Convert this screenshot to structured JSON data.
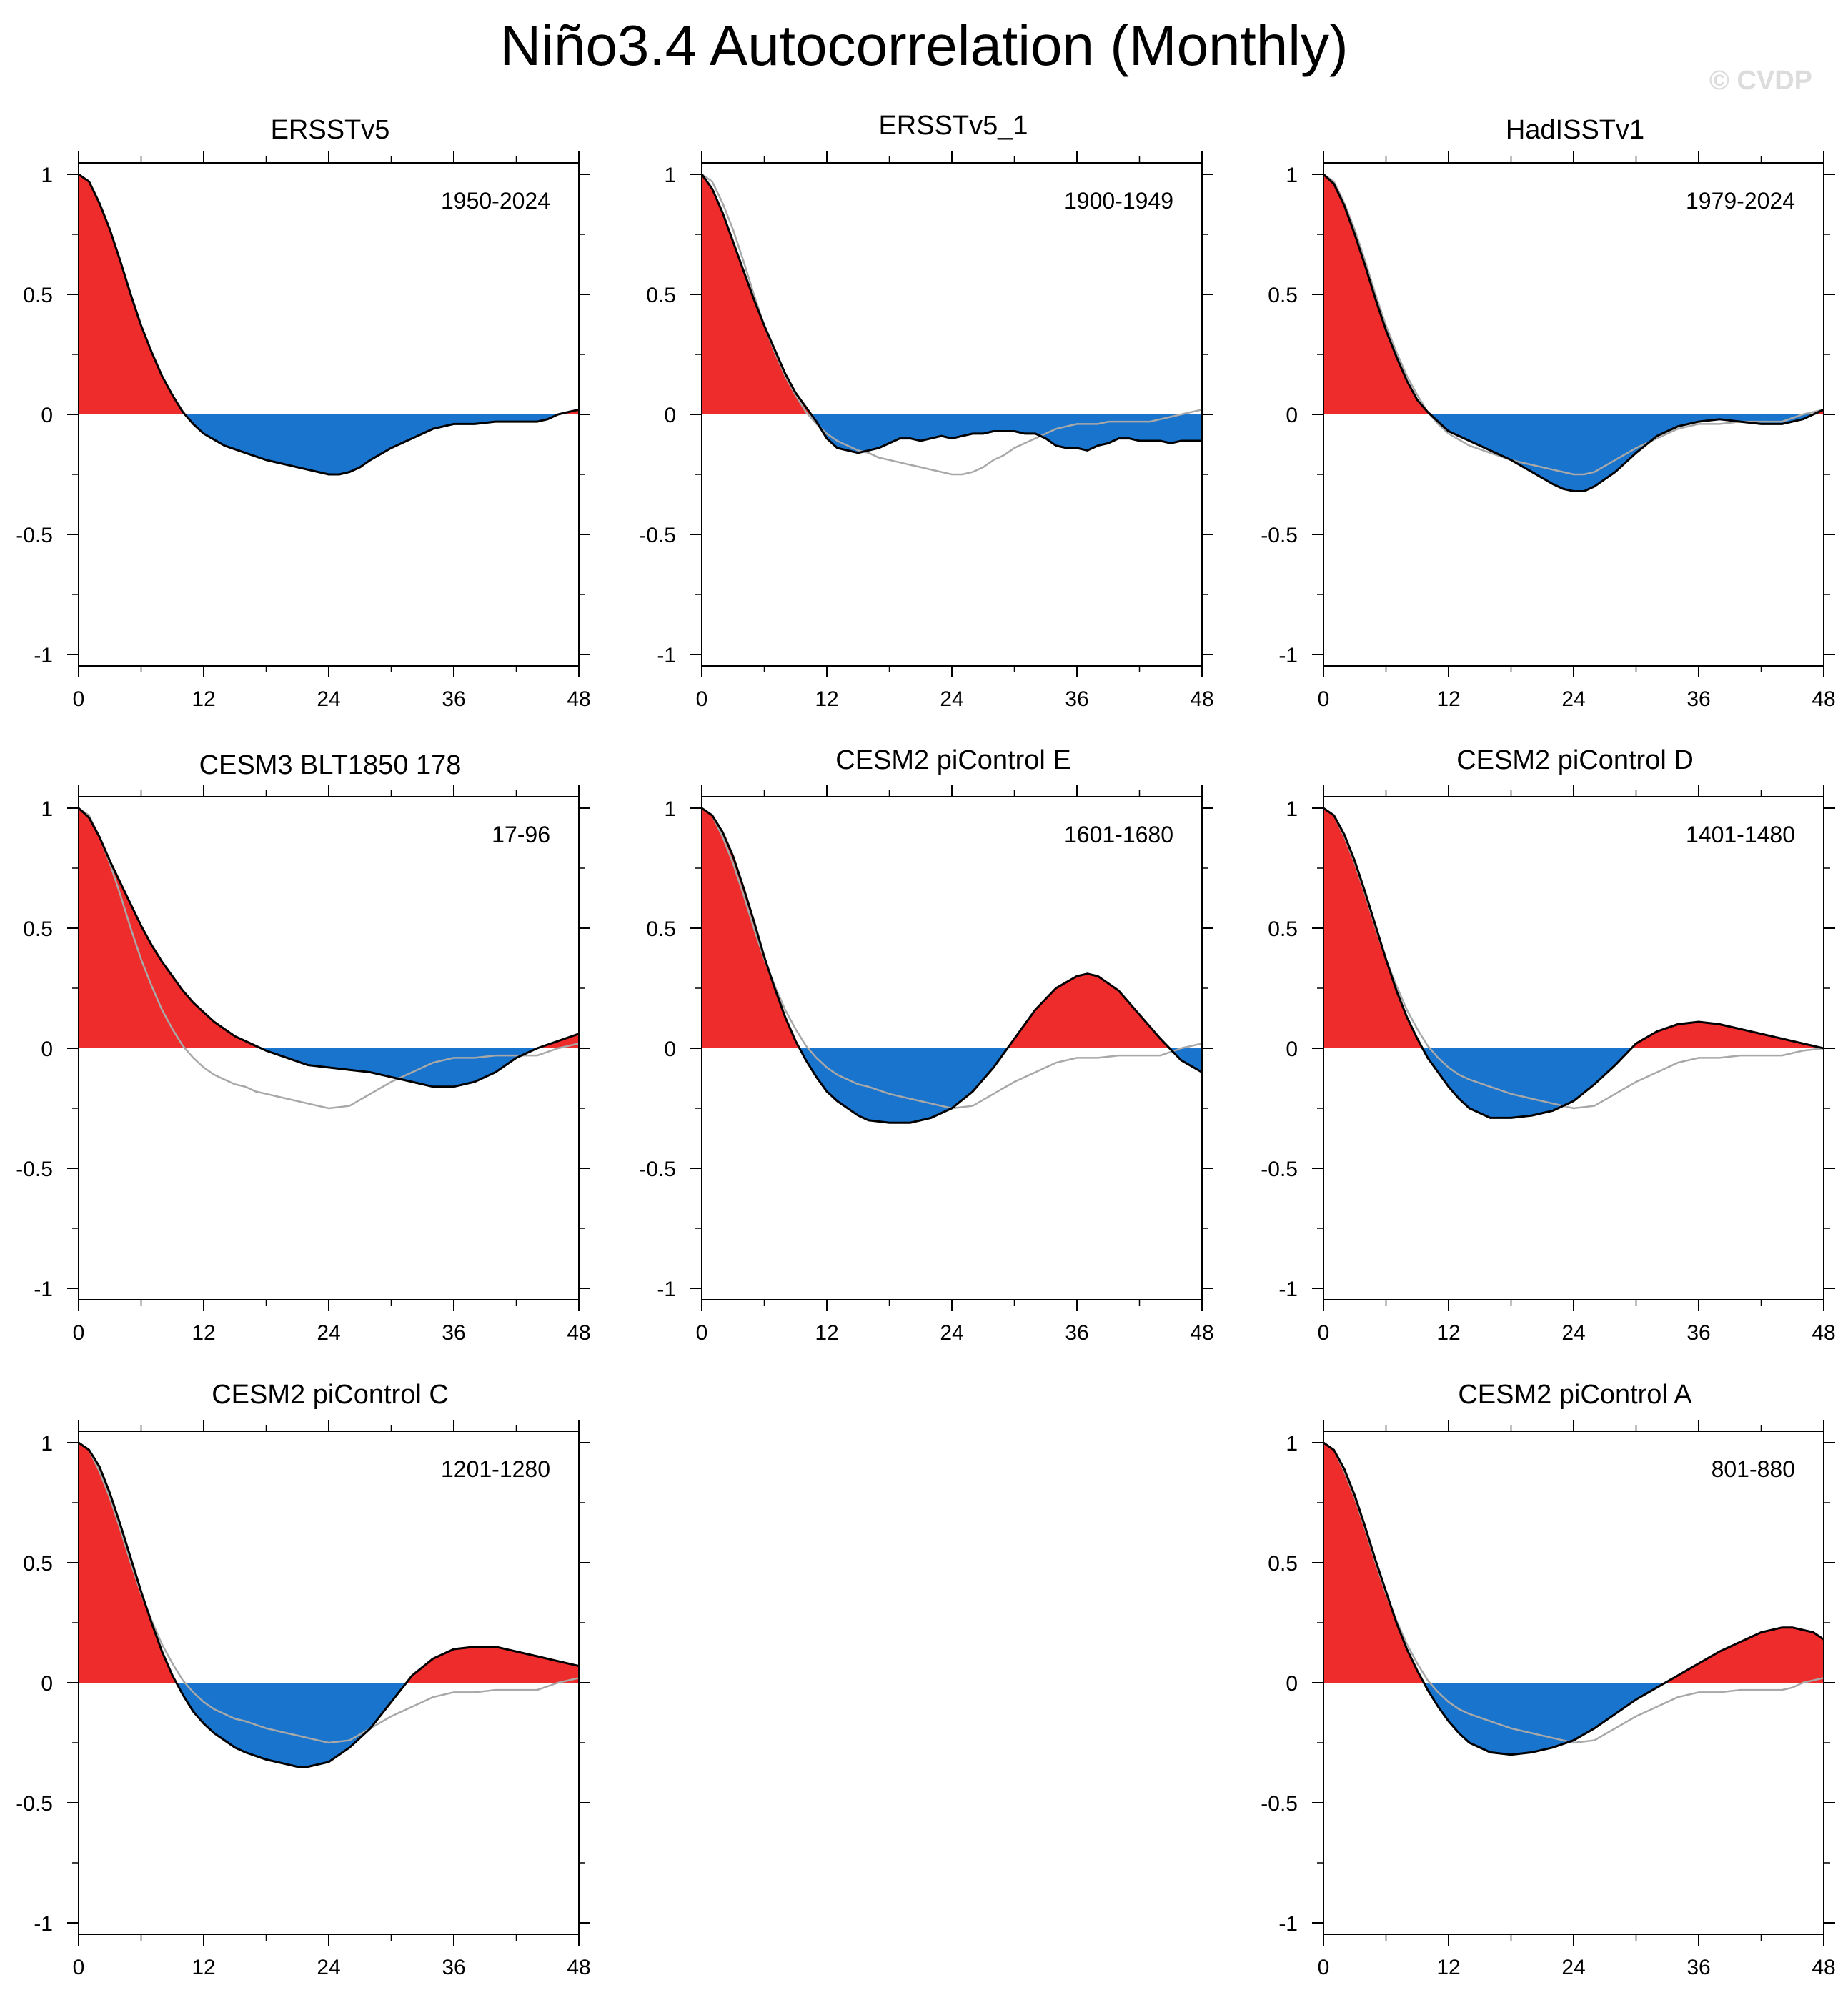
{
  "title": "Niño3.4 Autocorrelation (Monthly)",
  "watermark": "© CVDP",
  "colors": {
    "positive_fill": "#ee2c2c",
    "negative_fill": "#1874cd",
    "model_line": "#000000",
    "reference_line": "#a8a8a8"
  },
  "chart_data": [
    {
      "type": "area",
      "title": "ERSSTv5",
      "period": "1950-2024",
      "x": [
        0,
        1,
        2,
        3,
        4,
        5,
        6,
        7,
        8,
        9,
        10,
        11,
        12,
        14,
        16,
        18,
        20,
        22,
        24,
        25,
        26,
        27,
        28,
        30,
        32,
        34,
        36,
        38,
        40,
        42,
        43,
        44,
        45,
        46,
        47,
        48
      ],
      "series": [
        {
          "values": [
            1.0,
            0.97,
            0.88,
            0.77,
            0.64,
            0.5,
            0.37,
            0.26,
            0.16,
            0.08,
            0.01,
            -0.04,
            -0.08,
            -0.13,
            -0.16,
            -0.19,
            -0.21,
            -0.23,
            -0.25,
            -0.25,
            -0.24,
            -0.22,
            -0.19,
            -0.14,
            -0.1,
            -0.06,
            -0.04,
            -0.04,
            -0.03,
            -0.03,
            -0.03,
            -0.03,
            -0.02,
            0.0,
            0.01,
            0.02
          ]
        },
        {
          "values": [
            1.0,
            0.97,
            0.88,
            0.77,
            0.64,
            0.5,
            0.37,
            0.26,
            0.16,
            0.08,
            0.01,
            -0.04,
            -0.08,
            -0.13,
            -0.16,
            -0.19,
            -0.21,
            -0.23,
            -0.25,
            -0.25,
            -0.24,
            -0.22,
            -0.19,
            -0.14,
            -0.1,
            -0.06,
            -0.04,
            -0.04,
            -0.03,
            -0.03,
            -0.03,
            -0.03,
            -0.02,
            0.0,
            0.01,
            0.02
          ]
        }
      ],
      "xticks": [
        "0",
        "12",
        "24",
        "36",
        "48"
      ],
      "yticks": [
        "1",
        "0.5",
        "0",
        "-0.5",
        "-1"
      ],
      "xlim": [
        0,
        48
      ],
      "ylim": [
        -1,
        1
      ]
    },
    {
      "type": "area",
      "title": "ERSSTv5_1",
      "period": "1900-1949",
      "x": [
        0,
        1,
        2,
        3,
        4,
        5,
        6,
        7,
        8,
        9,
        10,
        11,
        12,
        13,
        14,
        15,
        16,
        17,
        18,
        19,
        20,
        21,
        22,
        23,
        24,
        25,
        26,
        27,
        28,
        29,
        30,
        31,
        32,
        33,
        34,
        35,
        36,
        37,
        38,
        39,
        40,
        41,
        42,
        43,
        44,
        45,
        46,
        47,
        48
      ],
      "series": [
        {
          "values": [
            1.0,
            0.94,
            0.84,
            0.72,
            0.6,
            0.48,
            0.37,
            0.27,
            0.17,
            0.09,
            0.03,
            -0.03,
            -0.1,
            -0.14,
            -0.15,
            -0.16,
            -0.15,
            -0.14,
            -0.12,
            -0.1,
            -0.1,
            -0.11,
            -0.1,
            -0.09,
            -0.1,
            -0.09,
            -0.08,
            -0.08,
            -0.07,
            -0.07,
            -0.07,
            -0.08,
            -0.08,
            -0.1,
            -0.13,
            -0.14,
            -0.14,
            -0.15,
            -0.13,
            -0.12,
            -0.1,
            -0.1,
            -0.11,
            -0.11,
            -0.11,
            -0.12,
            -0.11,
            -0.11,
            -0.11
          ]
        },
        {
          "values": [
            1.0,
            0.97,
            0.88,
            0.77,
            0.64,
            0.5,
            0.37,
            0.26,
            0.16,
            0.08,
            0.01,
            -0.04,
            -0.08,
            -0.11,
            -0.13,
            -0.15,
            -0.16,
            -0.18,
            -0.19,
            -0.2,
            -0.21,
            -0.22,
            -0.23,
            -0.24,
            -0.25,
            -0.25,
            -0.24,
            -0.22,
            -0.19,
            -0.17,
            -0.14,
            -0.12,
            -0.1,
            -0.08,
            -0.06,
            -0.05,
            -0.04,
            -0.04,
            -0.04,
            -0.03,
            -0.03,
            -0.03,
            -0.03,
            -0.03,
            -0.02,
            -0.01,
            0.0,
            0.01,
            0.02
          ]
        }
      ],
      "xticks": [
        "0",
        "12",
        "24",
        "36",
        "48"
      ],
      "yticks": [
        "1",
        "0.5",
        "0",
        "-0.5",
        "-1"
      ],
      "xlim": [
        0,
        48
      ],
      "ylim": [
        -1,
        1
      ]
    },
    {
      "type": "area",
      "title": "HadISSTv1",
      "period": "1979-2024",
      "x": [
        0,
        1,
        2,
        3,
        4,
        5,
        6,
        7,
        8,
        9,
        10,
        11,
        12,
        14,
        16,
        18,
        20,
        22,
        23,
        24,
        25,
        26,
        28,
        30,
        32,
        34,
        36,
        38,
        40,
        42,
        44,
        46,
        47,
        48
      ],
      "series": [
        {
          "values": [
            1.0,
            0.96,
            0.87,
            0.75,
            0.62,
            0.48,
            0.35,
            0.24,
            0.14,
            0.06,
            0.01,
            -0.03,
            -0.07,
            -0.11,
            -0.15,
            -0.19,
            -0.24,
            -0.29,
            -0.31,
            -0.32,
            -0.32,
            -0.3,
            -0.24,
            -0.16,
            -0.09,
            -0.05,
            -0.03,
            -0.02,
            -0.03,
            -0.04,
            -0.04,
            -0.02,
            0.0,
            0.02
          ]
        },
        {
          "values": [
            1.0,
            0.97,
            0.88,
            0.77,
            0.64,
            0.5,
            0.37,
            0.26,
            0.16,
            0.08,
            0.01,
            -0.04,
            -0.08,
            -0.13,
            -0.16,
            -0.19,
            -0.21,
            -0.23,
            -0.24,
            -0.25,
            -0.25,
            -0.24,
            -0.19,
            -0.14,
            -0.1,
            -0.06,
            -0.04,
            -0.04,
            -0.03,
            -0.03,
            -0.03,
            0.0,
            0.01,
            0.02
          ]
        }
      ],
      "xticks": [
        "0",
        "12",
        "24",
        "36",
        "48"
      ],
      "yticks": [
        "1",
        "0.5",
        "0",
        "-0.5",
        "-1"
      ],
      "xlim": [
        0,
        48
      ],
      "ylim": [
        -1,
        1
      ]
    },
    {
      "type": "area",
      "title": "CESM3 BLT1850 178",
      "period": "17-96",
      "x": [
        0,
        1,
        2,
        3,
        4,
        5,
        6,
        7,
        8,
        9,
        10,
        11,
        12,
        13,
        14,
        15,
        16,
        17,
        18,
        20,
        22,
        24,
        26,
        28,
        30,
        32,
        34,
        36,
        38,
        40,
        42,
        44,
        46,
        48
      ],
      "series": [
        {
          "values": [
            1.0,
            0.96,
            0.88,
            0.78,
            0.69,
            0.6,
            0.51,
            0.43,
            0.36,
            0.3,
            0.24,
            0.19,
            0.15,
            0.11,
            0.08,
            0.05,
            0.03,
            0.01,
            -0.01,
            -0.04,
            -0.07,
            -0.08,
            -0.09,
            -0.1,
            -0.12,
            -0.14,
            -0.16,
            -0.16,
            -0.14,
            -0.1,
            -0.04,
            0.0,
            0.03,
            0.06
          ]
        },
        {
          "values": [
            1.0,
            0.97,
            0.88,
            0.77,
            0.64,
            0.5,
            0.37,
            0.26,
            0.16,
            0.08,
            0.01,
            -0.04,
            -0.08,
            -0.11,
            -0.13,
            -0.15,
            -0.16,
            -0.18,
            -0.19,
            -0.21,
            -0.23,
            -0.25,
            -0.24,
            -0.19,
            -0.14,
            -0.1,
            -0.06,
            -0.04,
            -0.04,
            -0.03,
            -0.03,
            -0.03,
            0.0,
            0.02
          ]
        }
      ],
      "xticks": [
        "0",
        "12",
        "24",
        "36",
        "48"
      ],
      "yticks": [
        "1",
        "0.5",
        "0",
        "-0.5",
        "-1"
      ],
      "xlim": [
        0,
        48
      ],
      "ylim": [
        -1,
        1
      ]
    },
    {
      "type": "area",
      "title": "CESM2 piControl E",
      "period": "1601-1680",
      "x": [
        0,
        1,
        2,
        3,
        4,
        5,
        6,
        7,
        8,
        9,
        10,
        11,
        12,
        13,
        14,
        15,
        16,
        18,
        20,
        22,
        24,
        26,
        28,
        30,
        32,
        34,
        36,
        37,
        38,
        40,
        42,
        44,
        46,
        48
      ],
      "series": [
        {
          "values": [
            1.0,
            0.97,
            0.9,
            0.8,
            0.67,
            0.53,
            0.38,
            0.25,
            0.13,
            0.03,
            -0.05,
            -0.12,
            -0.18,
            -0.22,
            -0.25,
            -0.28,
            -0.3,
            -0.31,
            -0.31,
            -0.29,
            -0.25,
            -0.18,
            -0.08,
            0.04,
            0.16,
            0.25,
            0.3,
            0.31,
            0.3,
            0.24,
            0.14,
            0.04,
            -0.05,
            -0.1
          ]
        },
        {
          "values": [
            1.0,
            0.97,
            0.88,
            0.77,
            0.64,
            0.5,
            0.37,
            0.26,
            0.16,
            0.08,
            0.01,
            -0.04,
            -0.08,
            -0.11,
            -0.13,
            -0.15,
            -0.16,
            -0.19,
            -0.21,
            -0.23,
            -0.25,
            -0.24,
            -0.19,
            -0.14,
            -0.1,
            -0.06,
            -0.04,
            -0.04,
            -0.04,
            -0.03,
            -0.03,
            -0.03,
            0.0,
            0.02
          ]
        }
      ],
      "xticks": [
        "0",
        "12",
        "24",
        "36",
        "48"
      ],
      "yticks": [
        "1",
        "0.5",
        "0",
        "-0.5",
        "-1"
      ],
      "xlim": [
        0,
        48
      ],
      "ylim": [
        -1,
        1
      ]
    },
    {
      "type": "area",
      "title": "CESM2 piControl D",
      "period": "1401-1480",
      "x": [
        0,
        1,
        2,
        3,
        4,
        5,
        6,
        7,
        8,
        9,
        10,
        11,
        12,
        13,
        14,
        16,
        18,
        20,
        22,
        24,
        26,
        28,
        30,
        32,
        34,
        36,
        38,
        40,
        42,
        44,
        46,
        48
      ],
      "series": [
        {
          "values": [
            1.0,
            0.97,
            0.89,
            0.78,
            0.65,
            0.51,
            0.37,
            0.24,
            0.13,
            0.04,
            -0.04,
            -0.1,
            -0.16,
            -0.21,
            -0.25,
            -0.29,
            -0.29,
            -0.28,
            -0.26,
            -0.22,
            -0.15,
            -0.07,
            0.02,
            0.07,
            0.1,
            0.11,
            0.1,
            0.08,
            0.06,
            0.04,
            0.02,
            0.0
          ]
        },
        {
          "values": [
            1.0,
            0.97,
            0.88,
            0.77,
            0.64,
            0.5,
            0.37,
            0.26,
            0.16,
            0.08,
            0.01,
            -0.04,
            -0.08,
            -0.11,
            -0.13,
            -0.16,
            -0.19,
            -0.21,
            -0.23,
            -0.25,
            -0.24,
            -0.19,
            -0.14,
            -0.1,
            -0.06,
            -0.04,
            -0.04,
            -0.03,
            -0.03,
            -0.03,
            -0.01,
            0.0
          ]
        }
      ],
      "xticks": [
        "0",
        "12",
        "24",
        "36",
        "48"
      ],
      "yticks": [
        "1",
        "0.5",
        "0",
        "-0.5",
        "-1"
      ],
      "xlim": [
        0,
        48
      ],
      "ylim": [
        -1,
        1
      ]
    },
    {
      "type": "area",
      "title": "CESM2 piControl C",
      "period": "1201-1280",
      "x": [
        0,
        1,
        2,
        3,
        4,
        5,
        6,
        7,
        8,
        9,
        10,
        11,
        12,
        13,
        14,
        15,
        16,
        18,
        20,
        21,
        22,
        24,
        26,
        28,
        30,
        32,
        34,
        36,
        38,
        40,
        42,
        44,
        46,
        48
      ],
      "series": [
        {
          "values": [
            1.0,
            0.97,
            0.9,
            0.79,
            0.66,
            0.52,
            0.38,
            0.25,
            0.13,
            0.03,
            -0.05,
            -0.12,
            -0.17,
            -0.21,
            -0.24,
            -0.27,
            -0.29,
            -0.32,
            -0.34,
            -0.35,
            -0.35,
            -0.33,
            -0.27,
            -0.19,
            -0.08,
            0.03,
            0.1,
            0.14,
            0.15,
            0.15,
            0.13,
            0.11,
            0.09,
            0.07
          ]
        },
        {
          "values": [
            1.0,
            0.97,
            0.88,
            0.77,
            0.64,
            0.5,
            0.37,
            0.26,
            0.16,
            0.08,
            0.01,
            -0.04,
            -0.08,
            -0.11,
            -0.13,
            -0.15,
            -0.16,
            -0.19,
            -0.21,
            -0.22,
            -0.23,
            -0.25,
            -0.24,
            -0.19,
            -0.14,
            -0.1,
            -0.06,
            -0.04,
            -0.04,
            -0.03,
            -0.03,
            -0.03,
            0.0,
            0.02
          ]
        }
      ],
      "xticks": [
        "0",
        "12",
        "24",
        "36",
        "48"
      ],
      "yticks": [
        "1",
        "0.5",
        "0",
        "-0.5",
        "-1"
      ],
      "xlim": [
        0,
        48
      ],
      "ylim": [
        -1,
        1
      ]
    },
    {
      "type": "area",
      "title": "CESM2 piControl A",
      "period": "801-880",
      "x": [
        0,
        1,
        2,
        3,
        4,
        5,
        6,
        7,
        8,
        9,
        10,
        11,
        12,
        13,
        14,
        16,
        18,
        20,
        22,
        24,
        26,
        28,
        30,
        32,
        34,
        36,
        38,
        40,
        42,
        44,
        45,
        46,
        47,
        48
      ],
      "series": [
        {
          "values": [
            1.0,
            0.97,
            0.89,
            0.78,
            0.65,
            0.51,
            0.38,
            0.25,
            0.14,
            0.05,
            -0.03,
            -0.1,
            -0.16,
            -0.21,
            -0.25,
            -0.29,
            -0.3,
            -0.29,
            -0.27,
            -0.24,
            -0.19,
            -0.13,
            -0.07,
            -0.02,
            0.03,
            0.08,
            0.13,
            0.17,
            0.21,
            0.23,
            0.23,
            0.22,
            0.21,
            0.18
          ]
        },
        {
          "values": [
            1.0,
            0.97,
            0.88,
            0.77,
            0.64,
            0.5,
            0.37,
            0.26,
            0.16,
            0.08,
            0.01,
            -0.04,
            -0.08,
            -0.11,
            -0.13,
            -0.16,
            -0.19,
            -0.21,
            -0.23,
            -0.25,
            -0.24,
            -0.19,
            -0.14,
            -0.1,
            -0.06,
            -0.04,
            -0.04,
            -0.03,
            -0.03,
            -0.03,
            -0.02,
            0.0,
            0.01,
            0.02
          ]
        }
      ],
      "xticks": [
        "0",
        "12",
        "24",
        "36",
        "48"
      ],
      "yticks": [
        "1",
        "0.5",
        "0",
        "-0.5",
        "-1"
      ],
      "xlim": [
        0,
        48
      ],
      "ylim": [
        -1,
        1
      ]
    }
  ]
}
